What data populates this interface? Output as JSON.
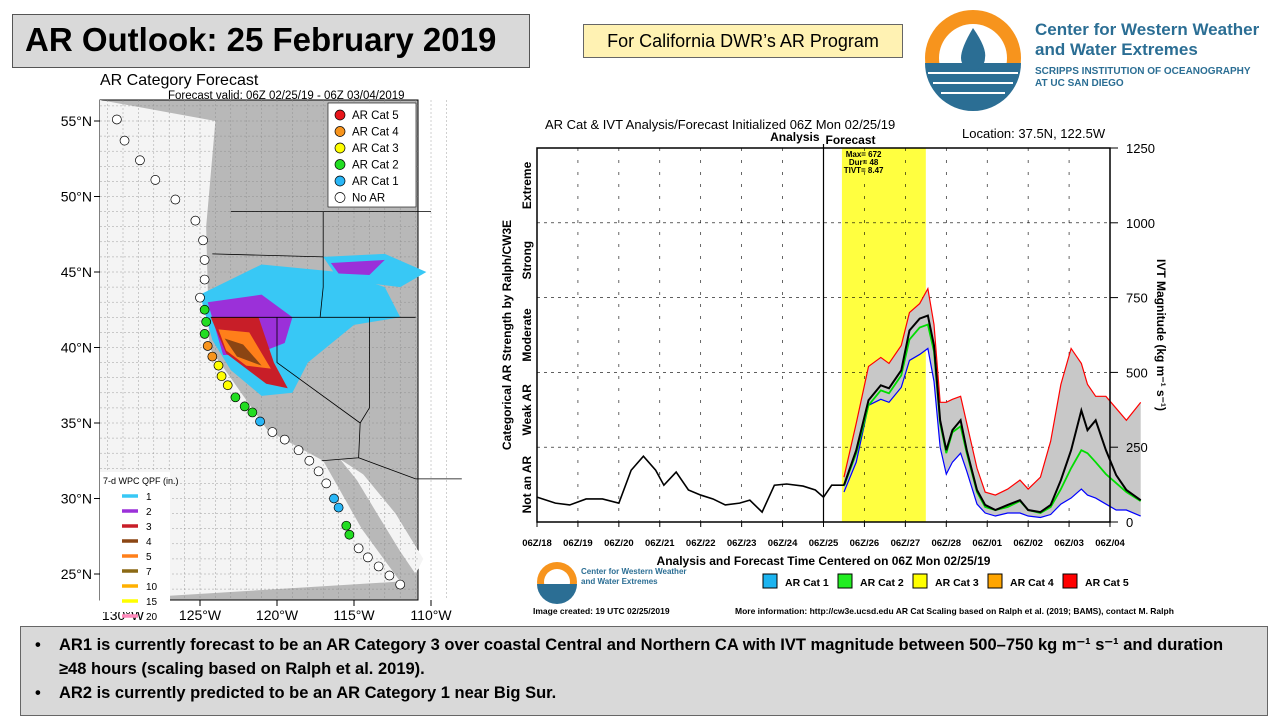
{
  "header": {
    "title": "AR Outlook: 25 February 2019",
    "program": "For California DWR’s AR Program",
    "org_name": "Center for Western Weather and Water Extremes",
    "org_name_line1": "Center for Western Weather",
    "org_name_line2": "and Water Extremes",
    "org_sub1": "SCRIPPS INSTITUTION OF OCEANOGRAPHY",
    "org_sub2": "AT UC SAN DIEGO"
  },
  "map": {
    "title": "AR Category Forecast",
    "valid": "Forecast valid: 06Z 02/25/19 - 06Z 03/04/2019",
    "lat_labels": [
      "55°N",
      "50°N",
      "45°N",
      "40°N",
      "35°N",
      "30°N",
      "25°N"
    ],
    "lon_labels": [
      "130°W",
      "125°W",
      "120°W",
      "115°W",
      "110°W"
    ],
    "legend": [
      {
        "label": "AR Cat 5",
        "color": "#e8161b"
      },
      {
        "label": "AR Cat 4",
        "color": "#f7941d"
      },
      {
        "label": "AR Cat 3",
        "color": "#ffff00"
      },
      {
        "label": "AR Cat 2",
        "color": "#22dd22"
      },
      {
        "label": "AR Cat 1",
        "color": "#29b6f6"
      },
      {
        "label": "No AR",
        "color": "#ffffff"
      }
    ],
    "qpf_title": "7-d WPC QPF (in.)",
    "qpf_legend": [
      {
        "label": "1",
        "color": "#38c8f5"
      },
      {
        "label": "2",
        "color": "#9b30d9"
      },
      {
        "label": "3",
        "color": "#c81e28"
      },
      {
        "label": "4",
        "color": "#8b4513"
      },
      {
        "label": "5",
        "color": "#ff7f1a"
      },
      {
        "label": "7",
        "color": "#8b6914"
      },
      {
        "label": "10",
        "color": "#ffb000"
      },
      {
        "label": "15",
        "color": "#ffff00"
      },
      {
        "label": "20",
        "color": "#ff88bb"
      }
    ],
    "points": [
      [
        -130.4,
        55.1,
        0
      ],
      [
        -129.9,
        53.7,
        0
      ],
      [
        -128.9,
        52.4,
        0
      ],
      [
        -127.9,
        51.1,
        0
      ],
      [
        -126.6,
        49.8,
        0
      ],
      [
        -125.3,
        48.4,
        0
      ],
      [
        -124.8,
        47.1,
        0
      ],
      [
        -124.7,
        45.8,
        0
      ],
      [
        -124.7,
        44.5,
        0
      ],
      [
        -125.0,
        43.3,
        0
      ],
      [
        -124.7,
        42.5,
        2
      ],
      [
        -124.6,
        41.7,
        2
      ],
      [
        -124.7,
        40.9,
        2
      ],
      [
        -124.5,
        40.1,
        4
      ],
      [
        -124.2,
        39.4,
        4
      ],
      [
        -123.8,
        38.8,
        3
      ],
      [
        -123.6,
        38.1,
        3
      ],
      [
        -123.2,
        37.5,
        3
      ],
      [
        -122.7,
        36.7,
        2
      ],
      [
        -122.1,
        36.1,
        2
      ],
      [
        -121.6,
        35.7,
        2
      ],
      [
        -121.1,
        35.1,
        1
      ],
      [
        -120.3,
        34.4,
        0
      ],
      [
        -119.5,
        33.9,
        0
      ],
      [
        -118.6,
        33.2,
        0
      ],
      [
        -117.9,
        32.5,
        0
      ],
      [
        -117.3,
        31.8,
        0
      ],
      [
        -116.8,
        31.0,
        0
      ],
      [
        -116.3,
        30.0,
        1
      ],
      [
        -116.0,
        29.4,
        1
      ],
      [
        -115.5,
        28.2,
        2
      ],
      [
        -115.3,
        27.6,
        2
      ],
      [
        -114.7,
        26.7,
        0
      ],
      [
        -114.1,
        26.1,
        0
      ],
      [
        -113.4,
        25.5,
        0
      ],
      [
        -112.7,
        24.9,
        0
      ],
      [
        -112.0,
        24.3,
        0
      ]
    ]
  },
  "chart_data": {
    "type": "line",
    "title": "AR Cat & IVT Analysis/Forecast Initialized 06Z Mon 02/25/19",
    "location": "Location: 37.5N, 122.5W",
    "analysis_label": "Analysis",
    "forecast_label": "Forecast",
    "stats": [
      "Max= 672",
      "Dur= 48",
      "TIVT= 8.47"
    ],
    "xlabel": "Analysis and Forecast Time Centered on 06Z Mon 02/25/19",
    "ylabel_left": "Categorical AR Strength by Ralph/CW3E",
    "ylabel_right": "IVT Magnitude (kg m⁻¹ s⁻¹)",
    "x_ticks": [
      "06Z/18",
      "06Z/19",
      "06Z/20",
      "06Z/21",
      "06Z/22",
      "06Z/23",
      "06Z/24",
      "06Z/25",
      "06Z/26",
      "06Z/27",
      "06Z/28",
      "06Z/01",
      "06Z/02",
      "06Z/03",
      "06Z/04"
    ],
    "y_ticks": [
      0,
      250,
      500,
      750,
      1000,
      1250
    ],
    "ylim": [
      0,
      1250
    ],
    "strength_bands": [
      "Not an AR",
      "Weak AR",
      "Moderate",
      "Strong",
      "Extreme"
    ],
    "highlight_x": [
      0.45,
      2.5
    ],
    "analysis": {
      "x": [
        0,
        0.45,
        0.8,
        1.2,
        1.6,
        2.0,
        2.3,
        2.6,
        2.9,
        3.1,
        3.4,
        3.7,
        4.0,
        4.3,
        4.6,
        4.95,
        5.2,
        5.5,
        5.8,
        6.1,
        6.5,
        6.8,
        7.0,
        7.2,
        7.5
      ],
      "y": [
        83,
        63,
        57,
        77,
        77,
        63,
        173,
        220,
        173,
        123,
        167,
        107,
        90,
        77,
        57,
        63,
        73,
        33,
        123,
        127,
        120,
        107,
        83,
        123,
        123
      ]
    },
    "forecast_mean": {
      "x": [
        7.5,
        7.8,
        8.1,
        8.4,
        8.6,
        8.9,
        9.1,
        9.35,
        9.55,
        9.7,
        9.85,
        10.0,
        10.15,
        10.35,
        10.5,
        10.75,
        10.95,
        11.2,
        11.5,
        11.8,
        12.0,
        12.3,
        12.55,
        12.8,
        13.05,
        13.3,
        13.45,
        13.65,
        13.9,
        14.15,
        14.4,
        14.75
      ],
      "y": [
        123,
        240,
        407,
        457,
        447,
        507,
        640,
        680,
        690,
        590,
        340,
        240,
        307,
        340,
        240,
        107,
        57,
        40,
        57,
        73,
        40,
        33,
        57,
        140,
        240,
        373,
        307,
        340,
        240,
        157,
        107,
        73
      ]
    },
    "forecast_max": {
      "x": [
        7.5,
        7.8,
        8.1,
        8.4,
        8.6,
        8.9,
        9.1,
        9.35,
        9.55,
        9.7,
        9.85,
        10.0,
        10.15,
        10.35,
        10.5,
        10.75,
        10.95,
        11.2,
        11.5,
        11.8,
        12.0,
        12.3,
        12.55,
        12.8,
        13.05,
        13.3,
        13.45,
        13.65,
        13.9,
        14.15,
        14.4,
        14.75
      ],
      "y": [
        150,
        330,
        520,
        550,
        530,
        590,
        700,
        730,
        780,
        660,
        400,
        400,
        410,
        420,
        330,
        180,
        100,
        90,
        110,
        140,
        110,
        150,
        270,
        460,
        580,
        530,
        460,
        420,
        420,
        380,
        340,
        400
      ]
    },
    "forecast_median": {
      "x": [
        7.5,
        7.8,
        8.1,
        8.4,
        8.6,
        8.9,
        9.1,
        9.35,
        9.55,
        9.7,
        9.85,
        10.0,
        10.15,
        10.35,
        10.5,
        10.75,
        10.95,
        11.2,
        11.5,
        11.8,
        12.0,
        12.3,
        12.55,
        12.8,
        13.05,
        13.3,
        13.45,
        13.65,
        13.9,
        14.15,
        14.4,
        14.75
      ],
      "y": [
        120,
        230,
        390,
        440,
        430,
        490,
        610,
        650,
        660,
        570,
        330,
        230,
        300,
        320,
        230,
        100,
        50,
        40,
        50,
        70,
        40,
        30,
        50,
        110,
        180,
        240,
        230,
        200,
        160,
        130,
        100,
        70
      ]
    },
    "forecast_min": {
      "x": [
        7.5,
        7.8,
        8.1,
        8.4,
        8.6,
        8.9,
        9.1,
        9.35,
        9.55,
        9.7,
        9.85,
        10.0,
        10.15,
        10.35,
        10.5,
        10.75,
        10.95,
        11.2,
        11.5,
        11.8,
        12.0,
        12.3,
        12.55,
        12.8,
        13.05,
        13.3,
        13.45,
        13.65,
        13.9,
        14.15,
        14.4,
        14.75
      ],
      "y": [
        100,
        200,
        390,
        410,
        400,
        450,
        540,
        560,
        580,
        470,
        250,
        160,
        200,
        230,
        170,
        60,
        30,
        20,
        30,
        30,
        20,
        15,
        25,
        60,
        80,
        110,
        90,
        80,
        60,
        40,
        40,
        20
      ]
    },
    "legend": [
      {
        "label": "AR Cat 1",
        "color": "#1cb4f0"
      },
      {
        "label": "AR Cat 2",
        "color": "#22ee22"
      },
      {
        "label": "AR Cat 3",
        "color": "#ffff00"
      },
      {
        "label": "AR Cat 4",
        "color": "#ffa500"
      },
      {
        "label": "AR Cat 5",
        "color": "#ff0000"
      }
    ],
    "created": "Image created: 19 UTC 02/25/2019",
    "more_info": "More information: http://cw3e.ucsd.edu  AR Cat Scaling based on Ralph et al. (2019; BAMS), contact M. Ralph"
  },
  "bullets": [
    "AR1 is currently forecast to be an AR Category 3 over coastal Central and Northern CA with IVT magnitude between 500–750 kg m⁻¹ s⁻¹ and duration ≥48 hours (scaling based on Ralph et al. 2019).",
    "AR2 is currently predicted to be an AR Category 1 near Big Sur."
  ]
}
